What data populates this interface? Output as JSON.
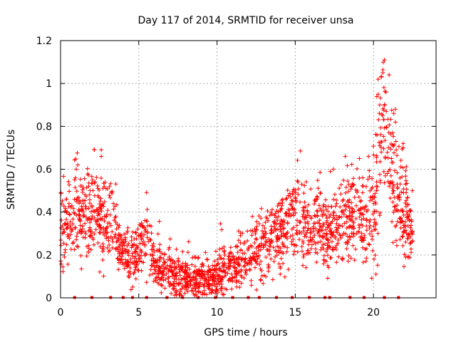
{
  "chart_data": {
    "type": "scatter",
    "title": "Day 117 of 2014, SRMTID for receiver unsa",
    "xlabel": "GPS time / hours",
    "ylabel": "SRMTID / TECUs",
    "xlim": [
      0,
      24
    ],
    "ylim": [
      0,
      1.2
    ],
    "x_ticks": [
      0,
      5,
      10,
      15,
      20
    ],
    "y_ticks": [
      0,
      0.2,
      0.4,
      0.6,
      0.8,
      1.0,
      1.2
    ],
    "x_tick_labels": [
      "0",
      "5",
      "10",
      "15",
      "20"
    ],
    "y_tick_labels": [
      "0",
      "0.2",
      "0.4",
      "0.6",
      "0.8",
      "1",
      "1.2"
    ],
    "grid": true,
    "marker": "+",
    "series": [
      {
        "name": "SRMTID",
        "color": "#ff0000",
        "profile": [
          [
            0.0,
            0.3,
            0.09
          ],
          [
            0.5,
            0.35,
            0.1
          ],
          [
            1.0,
            0.42,
            0.1
          ],
          [
            1.5,
            0.38,
            0.1
          ],
          [
            2.0,
            0.4,
            0.11
          ],
          [
            2.5,
            0.37,
            0.1
          ],
          [
            3.0,
            0.35,
            0.1
          ],
          [
            3.5,
            0.3,
            0.08
          ],
          [
            4.0,
            0.2,
            0.06
          ],
          [
            4.5,
            0.18,
            0.06
          ],
          [
            5.0,
            0.22,
            0.07
          ],
          [
            5.5,
            0.28,
            0.08
          ],
          [
            6.0,
            0.15,
            0.05
          ],
          [
            6.5,
            0.13,
            0.05
          ],
          [
            7.0,
            0.12,
            0.05
          ],
          [
            7.5,
            0.1,
            0.05
          ],
          [
            8.0,
            0.09,
            0.04
          ],
          [
            8.5,
            0.1,
            0.05
          ],
          [
            9.0,
            0.09,
            0.04
          ],
          [
            9.5,
            0.09,
            0.04
          ],
          [
            10.0,
            0.1,
            0.05
          ],
          [
            10.5,
            0.12,
            0.05
          ],
          [
            11.0,
            0.14,
            0.05
          ],
          [
            11.5,
            0.16,
            0.06
          ],
          [
            12.0,
            0.18,
            0.06
          ],
          [
            12.5,
            0.22,
            0.07
          ],
          [
            13.0,
            0.25,
            0.07
          ],
          [
            13.5,
            0.26,
            0.08
          ],
          [
            14.0,
            0.3,
            0.08
          ],
          [
            14.5,
            0.32,
            0.09
          ],
          [
            15.0,
            0.38,
            0.1
          ],
          [
            15.5,
            0.36,
            0.1
          ],
          [
            16.0,
            0.32,
            0.09
          ],
          [
            16.5,
            0.35,
            0.09
          ],
          [
            17.0,
            0.3,
            0.09
          ],
          [
            17.5,
            0.33,
            0.09
          ],
          [
            18.0,
            0.35,
            0.1
          ],
          [
            18.5,
            0.4,
            0.1
          ],
          [
            19.0,
            0.38,
            0.1
          ],
          [
            19.5,
            0.35,
            0.1
          ],
          [
            20.0,
            0.4,
            0.12
          ],
          [
            20.3,
            0.6,
            0.18
          ],
          [
            20.6,
            0.85,
            0.15
          ],
          [
            21.0,
            0.6,
            0.15
          ],
          [
            21.5,
            0.5,
            0.15
          ],
          [
            22.0,
            0.4,
            0.12
          ],
          [
            22.5,
            0.3,
            0.06
          ]
        ],
        "highlights": [
          [
            20.7,
            1.11
          ],
          [
            20.6,
            1.05
          ],
          [
            20.5,
            1.03
          ],
          [
            20.3,
            1.02
          ],
          [
            21.0,
            1.04
          ],
          [
            20.3,
            0.95
          ],
          [
            20.8,
            0.96
          ],
          [
            21.4,
            0.88
          ],
          [
            21.3,
            0.86
          ],
          [
            20.4,
            0.9
          ],
          [
            1.1,
            0.62
          ],
          [
            1.0,
            0.6
          ],
          [
            2.6,
            0.69
          ],
          [
            2.6,
            0.66
          ],
          [
            0.9,
            0.55
          ],
          [
            21.9,
            0.72
          ],
          [
            21.9,
            0.7
          ],
          [
            20.5,
            0.68
          ],
          [
            18.2,
            0.66
          ],
          [
            19.1,
            0.65
          ]
        ],
        "zero_marks": [
          0.9,
          2.0,
          3.2,
          4.0,
          4.6,
          5.5,
          6.8,
          7.8,
          8.8,
          9.9,
          11.0,
          12.0,
          12.7,
          13.8,
          14.8,
          15.9,
          16.9,
          17.2,
          18.5,
          19.4,
          20.7,
          21.6
        ]
      }
    ]
  }
}
